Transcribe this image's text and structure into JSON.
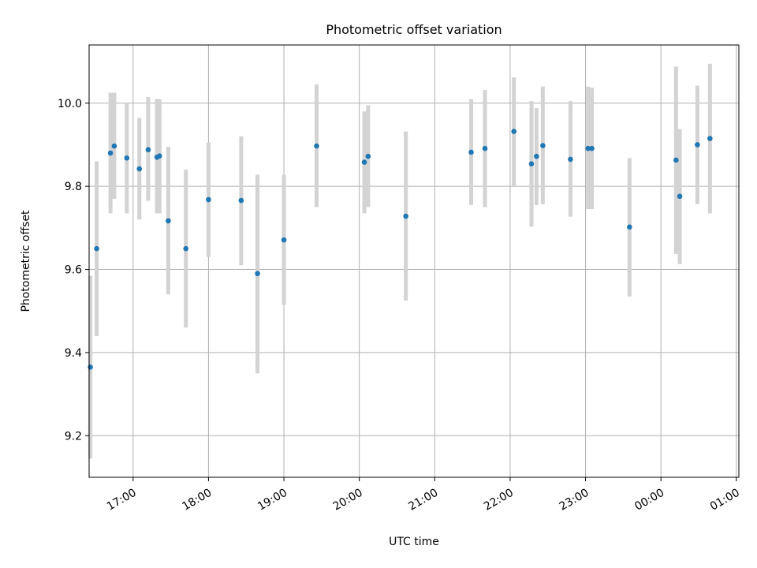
{
  "chart_data": {
    "type": "scatter",
    "title": "Photometric offset variation",
    "xlabel": "UTC time",
    "ylabel": "Photometric offset",
    "grid": true,
    "legend": "none",
    "x_ticks": [
      "17:00",
      "18:00",
      "19:00",
      "20:00",
      "21:00",
      "22:00",
      "23:00",
      "00:00",
      "01:00"
    ],
    "y_ticks": [
      "9.2",
      "9.4",
      "9.6",
      "9.8",
      "10.0"
    ],
    "xlim": [
      "16:25",
      "01:02"
    ],
    "ylim": [
      9.1,
      10.14
    ],
    "colors": {
      "point": "#1f77b4",
      "errorbar": "#d3d3d3",
      "grid": "#b0b0b0"
    },
    "series": [
      {
        "points": [
          {
            "x": "16:26",
            "y": 9.365,
            "lo": 9.145,
            "hi": 9.585
          },
          {
            "x": "16:31",
            "y": 9.65,
            "lo": 9.44,
            "hi": 9.86
          },
          {
            "x": "16:42",
            "y": 9.88,
            "lo": 9.735,
            "hi": 10.025
          },
          {
            "x": "16:45",
            "y": 9.897,
            "lo": 9.77,
            "hi": 10.025
          },
          {
            "x": "16:55",
            "y": 9.868,
            "lo": 9.735,
            "hi": 10.0
          },
          {
            "x": "17:05",
            "y": 9.842,
            "lo": 9.72,
            "hi": 9.965
          },
          {
            "x": "17:12",
            "y": 9.888,
            "lo": 9.765,
            "hi": 10.015
          },
          {
            "x": "17:19",
            "y": 9.87,
            "lo": 9.735,
            "hi": 10.01
          },
          {
            "x": "17:21",
            "y": 9.873,
            "lo": 9.735,
            "hi": 10.01
          },
          {
            "x": "17:28",
            "y": 9.717,
            "lo": 9.54,
            "hi": 9.895
          },
          {
            "x": "17:42",
            "y": 9.65,
            "lo": 9.46,
            "hi": 9.84
          },
          {
            "x": "18:00",
            "y": 9.768,
            "lo": 9.63,
            "hi": 9.905
          },
          {
            "x": "18:26",
            "y": 9.766,
            "lo": 9.61,
            "hi": 9.92
          },
          {
            "x": "18:39",
            "y": 9.59,
            "lo": 9.35,
            "hi": 9.828
          },
          {
            "x": "19:00",
            "y": 9.671,
            "lo": 9.515,
            "hi": 9.828
          },
          {
            "x": "19:26",
            "y": 9.897,
            "lo": 9.75,
            "hi": 10.045
          },
          {
            "x": "20:04",
            "y": 9.858,
            "lo": 9.735,
            "hi": 9.98
          },
          {
            "x": "20:07",
            "y": 9.872,
            "lo": 9.75,
            "hi": 9.995
          },
          {
            "x": "20:37",
            "y": 9.728,
            "lo": 9.525,
            "hi": 9.932
          },
          {
            "x": "21:29",
            "y": 9.882,
            "lo": 9.755,
            "hi": 10.01
          },
          {
            "x": "21:40",
            "y": 9.891,
            "lo": 9.75,
            "hi": 10.032
          },
          {
            "x": "22:03",
            "y": 9.932,
            "lo": 9.8,
            "hi": 10.062
          },
          {
            "x": "22:17",
            "y": 9.854,
            "lo": 9.703,
            "hi": 10.005
          },
          {
            "x": "22:21",
            "y": 9.872,
            "lo": 9.755,
            "hi": 9.988
          },
          {
            "x": "22:26",
            "y": 9.898,
            "lo": 9.757,
            "hi": 10.04
          },
          {
            "x": "22:48",
            "y": 9.865,
            "lo": 9.727,
            "hi": 10.005
          },
          {
            "x": "23:02",
            "y": 9.891,
            "lo": 9.745,
            "hi": 10.04
          },
          {
            "x": "23:05",
            "y": 9.891,
            "lo": 9.745,
            "hi": 10.037
          },
          {
            "x": "23:35",
            "y": 9.702,
            "lo": 9.535,
            "hi": 9.868
          },
          {
            "x": "00:12",
            "y": 9.863,
            "lo": 9.637,
            "hi": 10.088
          },
          {
            "x": "00:15",
            "y": 9.776,
            "lo": 9.613,
            "hi": 9.938
          },
          {
            "x": "00:29",
            "y": 9.9,
            "lo": 9.757,
            "hi": 10.042
          },
          {
            "x": "00:39",
            "y": 9.915,
            "lo": 9.735,
            "hi": 10.095
          }
        ]
      }
    ]
  }
}
